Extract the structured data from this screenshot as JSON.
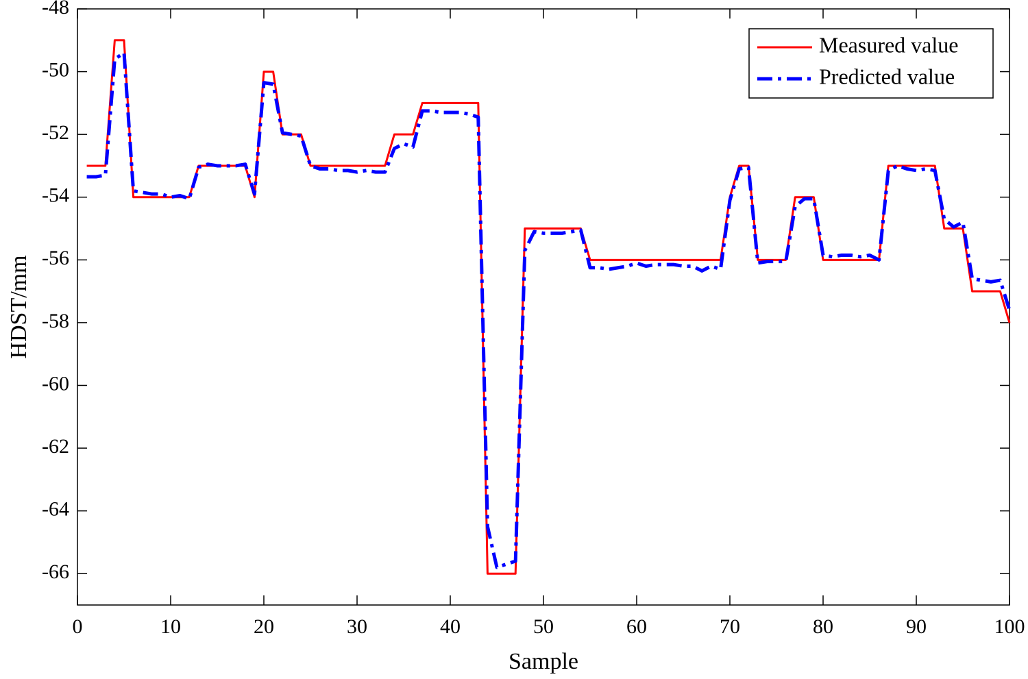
{
  "chart_data": {
    "type": "line",
    "x_label": "Sample",
    "y_label": "HDST/mm",
    "x": [
      1,
      2,
      3,
      4,
      5,
      6,
      7,
      8,
      9,
      10,
      11,
      12,
      13,
      14,
      15,
      16,
      17,
      18,
      19,
      20,
      21,
      22,
      23,
      24,
      25,
      26,
      27,
      28,
      29,
      30,
      31,
      32,
      33,
      34,
      35,
      36,
      37,
      38,
      39,
      40,
      41,
      42,
      43,
      44,
      45,
      46,
      47,
      48,
      49,
      50,
      51,
      52,
      53,
      54,
      55,
      56,
      57,
      58,
      59,
      60,
      61,
      62,
      63,
      64,
      65,
      66,
      67,
      68,
      69,
      70,
      71,
      72,
      73,
      74,
      75,
      76,
      77,
      78,
      79,
      80,
      81,
      82,
      83,
      84,
      85,
      86,
      87,
      88,
      89,
      90,
      91,
      92,
      93,
      94,
      95,
      96,
      97,
      98,
      99,
      100
    ],
    "series": [
      {
        "name": "Measured value",
        "color": "#ff0000",
        "dash": "solid",
        "values": [
          -53,
          -53,
          -53,
          -49,
          -49,
          -54,
          -54,
          -54,
          -54,
          -54,
          -54,
          -54,
          -53,
          -53,
          -53,
          -53,
          -53,
          -53,
          -54,
          -50,
          -50,
          -52,
          -52,
          -52,
          -53,
          -53,
          -53,
          -53,
          -53,
          -53,
          -53,
          -53,
          -53,
          -52,
          -52,
          -52,
          -51,
          -51,
          -51,
          -51,
          -51,
          -51,
          -51,
          -66,
          -66,
          -66,
          -66,
          -55,
          -55,
          -55,
          -55,
          -55,
          -55,
          -55,
          -56,
          -56,
          -56,
          -56,
          -56,
          -56,
          -56,
          -56,
          -56,
          -56,
          -56,
          -56,
          -56,
          -56,
          -56,
          -54,
          -53,
          -53,
          -56,
          -56,
          -56,
          -56,
          -54,
          -54,
          -54,
          -56,
          -56,
          -56,
          -56,
          -56,
          -56,
          -56,
          -53,
          -53,
          -53,
          -53,
          -53,
          -53,
          -55,
          -55,
          -55,
          -57,
          -57,
          -57,
          -57,
          -58
        ]
      },
      {
        "name": "Predicted value",
        "color": "#0000ff",
        "dash": "dashdot",
        "values": [
          -53.35,
          -53.35,
          -53.3,
          -49.6,
          -49.4,
          -53.8,
          -53.85,
          -53.9,
          -53.9,
          -54,
          -53.95,
          -54.05,
          -53.05,
          -52.95,
          -53,
          -53,
          -53,
          -52.95,
          -53.9,
          -50.35,
          -50.4,
          -51.95,
          -52,
          -52.05,
          -53,
          -53.1,
          -53.1,
          -53.15,
          -53.15,
          -53.2,
          -53.15,
          -53.2,
          -53.2,
          -52.45,
          -52.3,
          -52.4,
          -51.25,
          -51.25,
          -51.3,
          -51.3,
          -51.3,
          -51.35,
          -51.45,
          -64.5,
          -65.8,
          -65.7,
          -65.6,
          -55.7,
          -55.1,
          -55.15,
          -55.15,
          -55.15,
          -55.1,
          -55.05,
          -56.25,
          -56.25,
          -56.3,
          -56.25,
          -56.2,
          -56.1,
          -56.2,
          -56.15,
          -56.15,
          -56.15,
          -56.2,
          -56.2,
          -56.35,
          -56.2,
          -56.3,
          -54.1,
          -53.1,
          -53.05,
          -56.1,
          -56.05,
          -56.05,
          -56.05,
          -54.3,
          -54.05,
          -54.05,
          -55.85,
          -55.9,
          -55.85,
          -55.85,
          -55.9,
          -55.85,
          -56,
          -53.15,
          -53,
          -53.1,
          -53.15,
          -53.1,
          -53.15,
          -54.7,
          -54.95,
          -54.8,
          -56.6,
          -56.65,
          -56.7,
          -56.65,
          -57.6
        ]
      }
    ],
    "xlim": [
      0,
      100
    ],
    "xticks": [
      0,
      10,
      20,
      30,
      40,
      50,
      60,
      70,
      80,
      90,
      100
    ],
    "ylim": [
      -67,
      -48
    ],
    "yticks": [
      -48,
      -50,
      -52,
      -54,
      -56,
      -58,
      -60,
      -62,
      -64,
      -66
    ],
    "grid": false,
    "legend": "top-right"
  }
}
